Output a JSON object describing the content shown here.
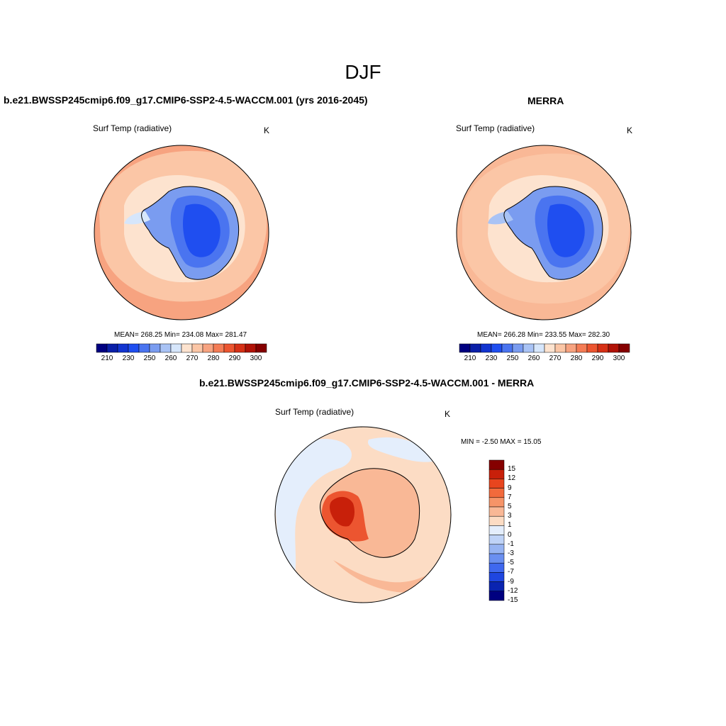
{
  "title": "DJF",
  "panels": [
    {
      "title": "b.e21.BWSSP245cmip6.f09_g17.CMIP6-SSP2-4.5-WACCM.001 (yrs 2016-2045)",
      "variable": "Surf Temp (radiative)",
      "units": "K",
      "stats": "MEAN= 268.25  Min= 234.08  Max= 281.47"
    },
    {
      "title": "MERRA",
      "variable": "Surf Temp (radiative)",
      "units": "K",
      "stats": "MEAN= 266.28  Min= 233.55  Max= 282.30"
    },
    {
      "title": "b.e21.BWSSP245cmip6.f09_g17.CMIP6-SSP2-4.5-WACCM.001 - MERRA",
      "variable": "Surf Temp (radiative)",
      "units": "K",
      "stats": "MIN =  -2.50 MAX =  15.05"
    }
  ],
  "abs_colorbar": {
    "colors": [
      "#000080",
      "#0a1fa8",
      "#1234d0",
      "#1f4ef0",
      "#4a74f0",
      "#7a9cf0",
      "#a9c3f5",
      "#d6e6fb",
      "#fde3cf",
      "#fbc6a6",
      "#f7a380",
      "#f47c55",
      "#ec5530",
      "#d63016",
      "#b11207",
      "#850000"
    ],
    "labels": [
      "210",
      "230",
      "250",
      "260",
      "270",
      "280",
      "290",
      "300"
    ]
  },
  "diff_colorbar": {
    "colors": [
      "#850000",
      "#c8200a",
      "#e8451e",
      "#f26a3c",
      "#f69468",
      "#f9b896",
      "#fcdcc4",
      "#e4eefc",
      "#bfd3f7",
      "#97b4f2",
      "#6a8ff0",
      "#3f68ef",
      "#1f46e0",
      "#0a24b0",
      "#000080"
    ],
    "labels": [
      "15",
      "12",
      "9",
      "7",
      "5",
      "3",
      "1",
      "0",
      "-1",
      "-3",
      "-5",
      "-7",
      "-9",
      "-12",
      "-15"
    ]
  }
}
